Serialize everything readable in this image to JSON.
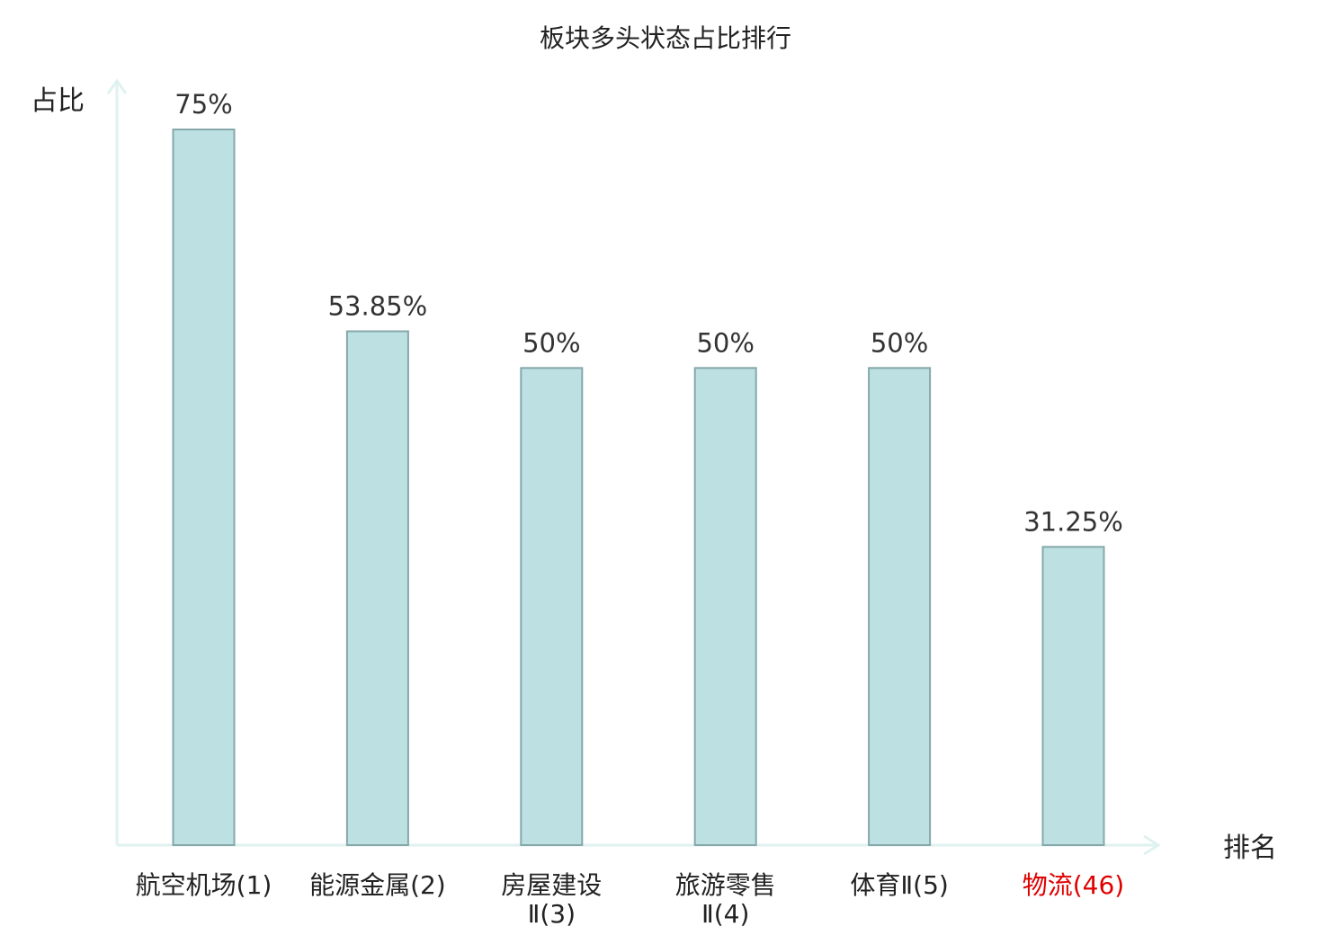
{
  "chart_data": {
    "type": "bar",
    "title": "板块多头状态占比排行",
    "xlabel": "排名",
    "ylabel": "占比",
    "categories": [
      {
        "name": "航空机场",
        "rank": "(1)",
        "line1": "航空机场(1)",
        "line2": "",
        "highlight": false
      },
      {
        "name": "能源金属",
        "rank": "(2)",
        "line1": "能源金属(2)",
        "line2": "",
        "highlight": false
      },
      {
        "name": "房屋建设Ⅱ",
        "rank": "(3)",
        "line1": "房屋建设",
        "line2": "Ⅱ(3)",
        "highlight": false
      },
      {
        "name": "旅游零售Ⅱ",
        "rank": "(4)",
        "line1": "旅游零售",
        "line2": "Ⅱ(4)",
        "highlight": false
      },
      {
        "name": "体育Ⅱ",
        "rank": "(5)",
        "line1": "体育Ⅱ(5)",
        "line2": "",
        "highlight": false
      },
      {
        "name": "物流",
        "rank": "(46)",
        "line1": "物流(46)",
        "line2": "",
        "highlight": true
      }
    ],
    "values": [
      75,
      53.85,
      50,
      50,
      50,
      31.25
    ],
    "value_labels": [
      "75%",
      "53.85%",
      "50%",
      "50%",
      "50%",
      "31.25%"
    ],
    "ylim": [
      0,
      75
    ],
    "grid": false,
    "colors": {
      "bar_fill": "#bde0e2",
      "bar_stroke": "#86a8ab",
      "axis": "#dff2ef",
      "highlight": "#e00000",
      "text": "#222222"
    }
  }
}
